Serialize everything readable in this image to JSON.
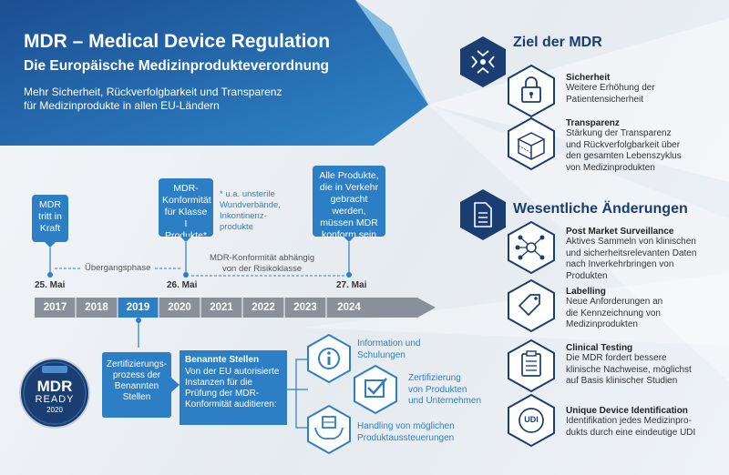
{
  "header": {
    "title": "MDR – Medical Device Regulation",
    "subtitle": "Die Europäische Medizinprodukteverordnung",
    "intro_line1": "Mehr Sicherheit, Rückverfolgbarkeit und Transparenz",
    "intro_line2": "für Medizinprodukte in allen EU-Ländern"
  },
  "timeline": {
    "bubble_mdr": [
      "MDR",
      "tritt in",
      "Kraft"
    ],
    "bubble_klasse1": [
      "MDR-",
      "Konformität",
      "für Klasse I",
      "Produkte*"
    ],
    "footnote": [
      "* u.a. unsterile",
      "Wundverbände,",
      "Inkontinenz-",
      "produkte"
    ],
    "bubble_all": [
      "Alle Produkte,",
      "die in Verkehr",
      "gebracht werden,",
      "müssen MDR",
      "konform sein"
    ],
    "uebergangsphase": "Übergangsphase",
    "risikoklasse": [
      "MDR-Konformität abhängig",
      "von der Risikoklasse"
    ],
    "date1": "25. Mai",
    "date2": "26. Mai",
    "date3": "27. Mai",
    "years": [
      "2017",
      "2018",
      "2019",
      "2020",
      "2021",
      "2022",
      "2023",
      "2024"
    ]
  },
  "badge": {
    "line1": "MDR",
    "line2": "READY",
    "line3": "2020"
  },
  "process": {
    "box1": [
      "Zertifizierungs-",
      "prozess der",
      "Benannten",
      "Stellen"
    ],
    "box2_title": "Benannte Stellen",
    "box2_text": [
      "Von der EU autorisierte",
      "Instanzen für die",
      "Prüfung der MDR-",
      "Konformität auditieren:"
    ],
    "item1": [
      "Information und",
      "Schulungen"
    ],
    "item2": [
      "Zertifizierung",
      "von Produkten",
      "und Unternehmen"
    ],
    "item3": [
      "Handling von möglichen",
      "Produktaussteuerungen"
    ]
  },
  "ziel": {
    "title": "Ziel der MDR",
    "items": [
      {
        "title": "Sicherheit",
        "text": [
          "Weitere Erhöhung der",
          "Patientensicherheit"
        ]
      },
      {
        "title": "Transparenz",
        "text": [
          "Stärkung der Transparenz",
          "und Rückverfolgbarkeit über",
          "den gesamten Lebenszyklus",
          "von Medizinprodukten"
        ]
      }
    ]
  },
  "aenderungen": {
    "title": "Wesentliche Änderungen",
    "items": [
      {
        "title": "Post Market Surveillance",
        "text": [
          "Aktives Sammeln von klinischen",
          "und sicherheitsrelevanten Daten",
          "nach Inverkehrbringen von",
          "Produkten"
        ]
      },
      {
        "title": "Labelling",
        "text": [
          "Neue Anforderungen an",
          "die Kennzeichnung von",
          "Medizinprodukten"
        ]
      },
      {
        "title": "Clinical Testing",
        "text": [
          "Die MDR fordert bessere",
          "klinische Nachweise, möglichst",
          "auf Basis klinischer Studien"
        ]
      },
      {
        "title": "Unique Device Identification",
        "text": [
          "Identifikation jedes Medizinpro-",
          "dukts durch eine eindeutige UDI"
        ]
      }
    ],
    "udi_label": "UDI"
  },
  "colors": {
    "navy": "#1a3e72",
    "blue": "#2c7fc4",
    "gray": "#8a9099",
    "highlight": "#2c7fc4"
  }
}
